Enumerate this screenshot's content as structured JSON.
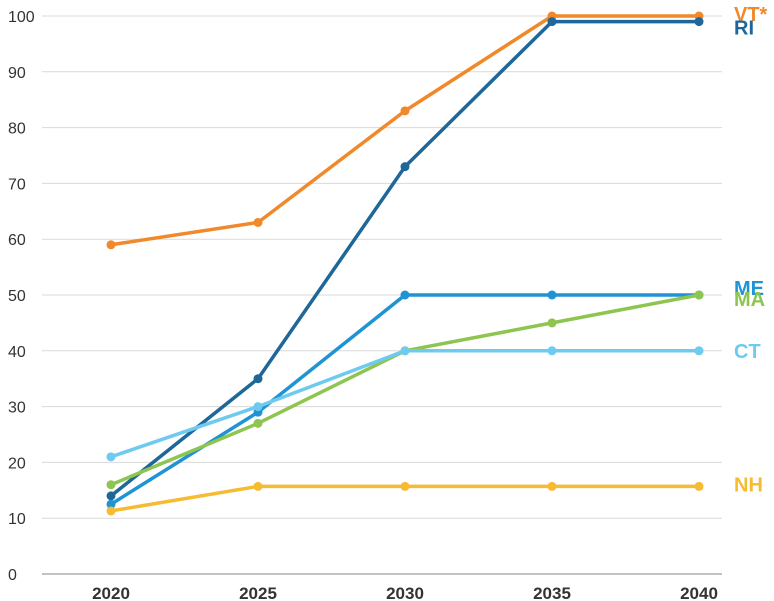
{
  "chart_data": {
    "type": "line",
    "title": "",
    "xlabel": "",
    "ylabel": "",
    "x": [
      2020,
      2025,
      2030,
      2035,
      2040
    ],
    "x_tick_labels": [
      "2020",
      "2025",
      "2030",
      "2035",
      "2040"
    ],
    "ylim": [
      0,
      100
    ],
    "y_ticks": [
      0,
      10,
      20,
      30,
      40,
      50,
      60,
      70,
      80,
      90,
      100
    ],
    "y_tick_labels": [
      "0",
      "10",
      "20",
      "30",
      "40",
      "50",
      "60",
      "70",
      "80",
      "90",
      "100"
    ],
    "grid": true,
    "legend": "labels at right end of lines",
    "series": [
      {
        "name": "VT*",
        "color": "#f0892b",
        "values": [
          59,
          63,
          83,
          100,
          100
        ]
      },
      {
        "name": "RI",
        "color": "#1f6799",
        "values": [
          14,
          35,
          73,
          99,
          99
        ]
      },
      {
        "name": "ME",
        "color": "#1f93d3",
        "values": [
          12.5,
          29,
          50,
          50,
          50
        ]
      },
      {
        "name": "MA",
        "color": "#8ec550",
        "values": [
          16,
          27,
          40,
          45,
          50
        ]
      },
      {
        "name": "CT",
        "color": "#6fcaef",
        "values": [
          21,
          30,
          40,
          40,
          40
        ]
      },
      {
        "name": "NH",
        "color": "#f6bb31",
        "values": [
          11.3,
          15.7,
          15.7,
          15.7,
          15.7
        ]
      }
    ]
  }
}
